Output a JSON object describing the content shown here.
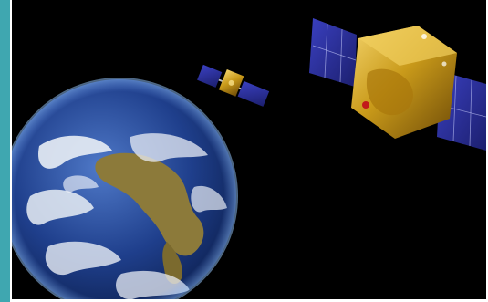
{
  "image": {
    "subject": "earth-with-two-satellites",
    "colors": {
      "accent_bar": "#3fa7b0",
      "space": "#000000",
      "ocean": "#1d3f8a",
      "land": "#8c7a3a",
      "cloud": "#e9eef5",
      "satellite_body": "#c99a1a",
      "solar_panel": "#2a2f9a",
      "panel_grid": "#cdd2ff"
    }
  }
}
